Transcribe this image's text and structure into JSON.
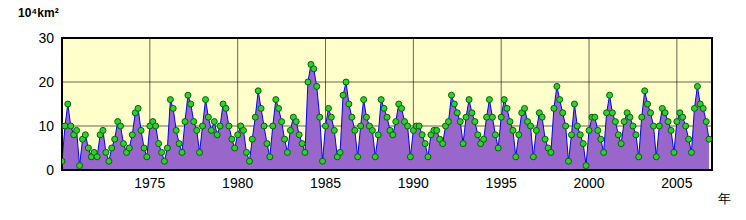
{
  "chart_data": {
    "type": "area",
    "y_label": "10⁴km²",
    "x_label": "年",
    "color": "#9966cc",
    "marker": "circle",
    "grid": true,
    "xlim": [
      1970,
      2007
    ],
    "xticks": [
      1975,
      1980,
      1985,
      1990,
      1995,
      2000,
      2005
    ],
    "ylim": [
      0,
      30
    ],
    "yticks": [
      0,
      10,
      20,
      30
    ],
    "x": [
      1970,
      1970.17,
      1970.33,
      1970.5,
      1970.67,
      1970.83,
      1971,
      1971.17,
      1971.33,
      1971.5,
      1971.67,
      1971.83,
      1972,
      1972.17,
      1972.33,
      1972.5,
      1972.67,
      1972.83,
      1973,
      1973.17,
      1973.33,
      1973.5,
      1973.67,
      1973.83,
      1974,
      1974.17,
      1974.33,
      1974.5,
      1974.67,
      1974.83,
      1975,
      1975.17,
      1975.33,
      1975.5,
      1975.67,
      1975.83,
      1976,
      1976.17,
      1976.33,
      1976.5,
      1976.67,
      1976.83,
      1977,
      1977.17,
      1977.33,
      1977.5,
      1977.67,
      1977.83,
      1978,
      1978.17,
      1978.33,
      1978.5,
      1978.67,
      1978.83,
      1979,
      1979.17,
      1979.33,
      1979.5,
      1979.67,
      1979.83,
      1980,
      1980.17,
      1980.33,
      1980.5,
      1980.67,
      1980.83,
      1981,
      1981.17,
      1981.33,
      1981.5,
      1981.67,
      1981.83,
      1982,
      1982.17,
      1982.33,
      1982.5,
      1982.67,
      1982.83,
      1983,
      1983.17,
      1983.33,
      1983.5,
      1983.67,
      1983.83,
      1984,
      1984.17,
      1984.33,
      1984.5,
      1984.67,
      1984.83,
      1985,
      1985.17,
      1985.33,
      1985.5,
      1985.67,
      1985.83,
      1986,
      1986.17,
      1986.33,
      1986.5,
      1986.67,
      1986.83,
      1987,
      1987.17,
      1987.33,
      1987.5,
      1987.67,
      1987.83,
      1988,
      1988.17,
      1988.33,
      1988.5,
      1988.67,
      1988.83,
      1989,
      1989.17,
      1989.33,
      1989.5,
      1989.67,
      1989.83,
      1990,
      1990.17,
      1990.33,
      1990.5,
      1990.67,
      1990.83,
      1991,
      1991.17,
      1991.33,
      1991.5,
      1991.67,
      1991.83,
      1992,
      1992.17,
      1992.33,
      1992.5,
      1992.67,
      1992.83,
      1993,
      1993.17,
      1993.33,
      1993.5,
      1993.67,
      1993.83,
      1994,
      1994.17,
      1994.33,
      1994.5,
      1994.67,
      1994.83,
      1995,
      1995.17,
      1995.33,
      1995.5,
      1995.67,
      1995.83,
      1996,
      1996.17,
      1996.33,
      1996.5,
      1996.67,
      1996.83,
      1997,
      1997.17,
      1997.33,
      1997.5,
      1997.67,
      1997.83,
      1998,
      1998.17,
      1998.33,
      1998.5,
      1998.67,
      1998.83,
      1999,
      1999.17,
      1999.33,
      1999.5,
      1999.67,
      1999.83,
      2000,
      2000.17,
      2000.33,
      2000.5,
      2000.67,
      2000.83,
      2001,
      2001.17,
      2001.33,
      2001.5,
      2001.67,
      2001.83,
      2002,
      2002.17,
      2002.33,
      2002.5,
      2002.67,
      2002.83,
      2003,
      2003.17,
      2003.33,
      2003.5,
      2003.67,
      2003.83,
      2004,
      2004.17,
      2004.33,
      2004.5,
      2004.67,
      2004.83,
      2005,
      2005.17,
      2005.33,
      2005.5,
      2005.67,
      2005.83,
      2006,
      2006.17,
      2006.33,
      2006.5,
      2006.67,
      2006.83
    ],
    "values": [
      2,
      10,
      15,
      10,
      8,
      9,
      1,
      7,
      8,
      5,
      3,
      4,
      3,
      8,
      9,
      4,
      2,
      5,
      7,
      11,
      10,
      6,
      4,
      5,
      8,
      13,
      14,
      9,
      5,
      3,
      10,
      11,
      10,
      6,
      4,
      2,
      5,
      16,
      14,
      9,
      6,
      4,
      11,
      17,
      15,
      11,
      9,
      4,
      10,
      16,
      12,
      9,
      11,
      8,
      10,
      15,
      14,
      10,
      7,
      5,
      8,
      10,
      9,
      4,
      2,
      7,
      12,
      18,
      14,
      10,
      6,
      3,
      10,
      16,
      14,
      11,
      7,
      4,
      9,
      12,
      11,
      8,
      6,
      4,
      20,
      24,
      23,
      19,
      12,
      2,
      10,
      14,
      12,
      9,
      3,
      4,
      17,
      20,
      15,
      12,
      9,
      3,
      10,
      16,
      12,
      10,
      9,
      3,
      8,
      16,
      14,
      12,
      9,
      8,
      11,
      15,
      14,
      11,
      10,
      3,
      9,
      10,
      10,
      8,
      6,
      3,
      8,
      9,
      9,
      7,
      6,
      10,
      11,
      17,
      15,
      13,
      11,
      6,
      12,
      16,
      13,
      11,
      8,
      6,
      7,
      12,
      16,
      12,
      8,
      5,
      12,
      16,
      14,
      11,
      9,
      3,
      8,
      13,
      14,
      11,
      10,
      3,
      9,
      13,
      12,
      7,
      5,
      4,
      14,
      19,
      16,
      13,
      10,
      2,
      8,
      15,
      10,
      8,
      6,
      1,
      9,
      12,
      12,
      9,
      7,
      4,
      13,
      17,
      13,
      11,
      8,
      6,
      11,
      13,
      12,
      10,
      8,
      3,
      12,
      18,
      15,
      13,
      10,
      3,
      10,
      14,
      13,
      11,
      9,
      4,
      11,
      13,
      12,
      10,
      7,
      4,
      14,
      19,
      15,
      14,
      11,
      7
    ]
  }
}
